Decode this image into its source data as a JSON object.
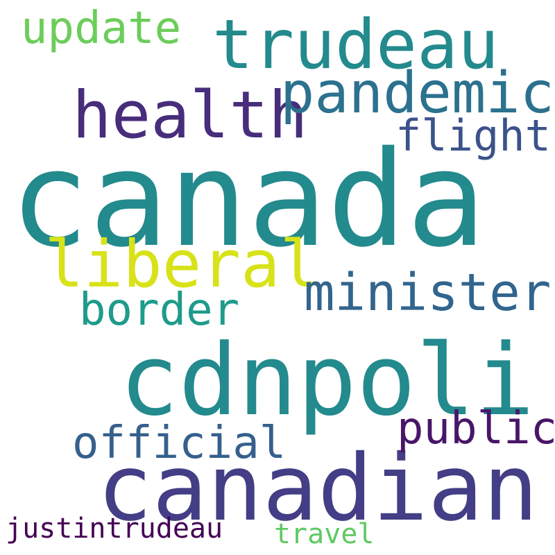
{
  "words": {
    "canada": {
      "text": "canada",
      "color": "#238a8d"
    },
    "cdnpoli": {
      "text": "cdnpoli",
      "color": "#238a8d"
    },
    "canadian": {
      "text": "canadian",
      "color": "#433e85"
    },
    "trudeau": {
      "text": "trudeau",
      "color": "#238a8d"
    },
    "health": {
      "text": "health",
      "color": "#472d7b"
    },
    "pandemic": {
      "text": "pandemic",
      "color": "#2c718e"
    },
    "liberal": {
      "text": "liberal",
      "color": "#d8e219"
    },
    "minister": {
      "text": "minister",
      "color": "#31658e"
    },
    "update": {
      "text": "update",
      "color": "#6ccd5a"
    },
    "border": {
      "text": "border",
      "color": "#1e9b8a"
    },
    "official": {
      "text": "official",
      "color": "#35608d"
    },
    "public": {
      "text": "public",
      "color": "#481668"
    },
    "flight": {
      "text": "flight",
      "color": "#3b528b"
    },
    "justintrudeau": {
      "text": "justintrudeau",
      "color": "#440154"
    },
    "travel": {
      "text": "travel",
      "color": "#5ec962"
    }
  }
}
